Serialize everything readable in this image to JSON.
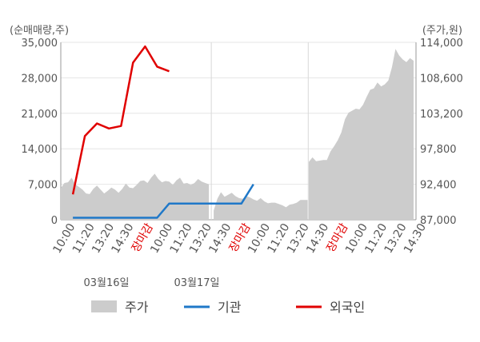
{
  "chart_data": {
    "type": "line",
    "left_axis": {
      "unit_label": "(순매매량,주)",
      "ylim": [
        0,
        35000
      ],
      "ticks": [
        "0",
        "7,000",
        "14,000",
        "21,000",
        "28,000",
        "35,000"
      ],
      "tick_values": [
        0,
        7000,
        14000,
        21000,
        28000,
        35000
      ]
    },
    "right_axis": {
      "unit_label": "(주가,원)",
      "ylim": [
        87000,
        114000
      ],
      "ticks": [
        "87,000",
        "92,400",
        "97,800",
        "103,200",
        "108,600",
        "114,000"
      ],
      "tick_values": [
        87000,
        92400,
        97800,
        103200,
        108600,
        114000
      ]
    },
    "x_labels": [
      {
        "label": "10:00",
        "close": false
      },
      {
        "label": "11:20",
        "close": false
      },
      {
        "label": "13:20",
        "close": false
      },
      {
        "label": "14:30",
        "close": false
      },
      {
        "label": "장마감",
        "close": true
      },
      {
        "label": "10:00",
        "close": false
      },
      {
        "label": "11:20",
        "close": false
      },
      {
        "label": "13:20",
        "close": false
      },
      {
        "label": "14:30",
        "close": false
      },
      {
        "label": "장마감",
        "close": true
      },
      {
        "label": "10:00",
        "close": false
      },
      {
        "label": "11:20",
        "close": false
      },
      {
        "label": "13:20",
        "close": false
      },
      {
        "label": "14:30",
        "close": false
      },
      {
        "label": "장마감",
        "close": true
      },
      {
        "label": "10:00",
        "close": false
      },
      {
        "label": "11:20",
        "close": false
      },
      {
        "label": "13:20",
        "close": false
      },
      {
        "label": "14:30",
        "close": false
      }
    ],
    "dates": [
      "03월16일",
      "03월17일"
    ],
    "series": [
      {
        "name": "주가",
        "axis": "right",
        "style": "area",
        "color": "#cccccc",
        "segments": [
          [
            [
              0,
              91800
            ],
            [
              3,
              92600
            ],
            [
              6,
              92700
            ],
            [
              9,
              93400
            ],
            [
              12,
              92400
            ],
            [
              15,
              92000
            ],
            [
              18,
              91600
            ],
            [
              21,
              91000
            ],
            [
              24,
              90900
            ],
            [
              27,
              91700
            ],
            [
              30,
              92200
            ],
            [
              33,
              91600
            ],
            [
              36,
              91000
            ],
            [
              39,
              91400
            ],
            [
              42,
              91900
            ],
            [
              45,
              91600
            ],
            [
              48,
              91100
            ],
            [
              51,
              91700
            ],
            [
              54,
              92500
            ],
            [
              57,
              91900
            ],
            [
              60,
              91800
            ],
            [
              63,
              92300
            ],
            [
              66,
              92900
            ],
            [
              69,
              93000
            ],
            [
              72,
              92600
            ],
            [
              75,
              93400
            ],
            [
              78,
              94000
            ],
            [
              81,
              93200
            ],
            [
              84,
              92700
            ],
            [
              87,
              92900
            ],
            [
              90,
              92800
            ],
            [
              93,
              92300
            ],
            [
              96,
              93000
            ],
            [
              99,
              93400
            ],
            [
              102,
              92500
            ],
            [
              105,
              92600
            ],
            [
              108,
              92300
            ],
            [
              111,
              92600
            ],
            [
              114,
              93200
            ],
            [
              117,
              92800
            ],
            [
              120,
              92600
            ],
            [
              123,
              92400
            ]
          ],
          [
            [
              127,
              88400
            ],
            [
              130,
              90200
            ],
            [
              133,
              91200
            ],
            [
              136,
              90500
            ],
            [
              139,
              90800
            ],
            [
              142,
              91100
            ],
            [
              145,
              90600
            ],
            [
              148,
              90300
            ],
            [
              151,
              90200
            ],
            [
              154,
              90600
            ],
            [
              157,
              90400
            ],
            [
              160,
              90100
            ],
            [
              163,
              89900
            ],
            [
              166,
              90300
            ],
            [
              169,
              89800
            ],
            [
              172,
              89500
            ],
            [
              175,
              89600
            ],
            [
              178,
              89600
            ],
            [
              181,
              89400
            ],
            [
              184,
              89200
            ],
            [
              187,
              88900
            ],
            [
              190,
              89300
            ],
            [
              193,
              89400
            ],
            [
              196,
              89600
            ],
            [
              199,
              90000
            ],
            [
              202,
              90000
            ],
            [
              205,
              90000
            ]
          ],
          [
            [
              206,
              95800
            ],
            [
              209,
              96500
            ],
            [
              212,
              95900
            ],
            [
              215,
              96000
            ],
            [
              218,
              96100
            ],
            [
              221,
              96100
            ],
            [
              224,
              97400
            ],
            [
              227,
              98200
            ],
            [
              230,
              99100
            ],
            [
              233,
              100300
            ],
            [
              236,
              102300
            ],
            [
              239,
              103300
            ],
            [
              242,
              103600
            ],
            [
              245,
              103900
            ],
            [
              248,
              103800
            ],
            [
              251,
              104500
            ],
            [
              254,
              105700
            ],
            [
              257,
              106800
            ],
            [
              260,
              107000
            ],
            [
              263,
              107900
            ],
            [
              266,
              107300
            ],
            [
              269,
              107600
            ],
            [
              272,
              108200
            ],
            [
              275,
              110200
            ],
            [
              278,
              113000
            ],
            [
              281,
              112000
            ],
            [
              284,
              111400
            ],
            [
              287,
              111000
            ],
            [
              290,
              111600
            ],
            [
              293,
              111200
            ]
          ]
        ]
      },
      {
        "name": "기관",
        "axis": "left",
        "style": "line",
        "color": "#1f78c8",
        "points": [
          [
            10,
            400
          ],
          [
            20,
            400
          ],
          [
            30,
            400
          ],
          [
            40,
            400
          ],
          [
            50,
            400
          ],
          [
            60,
            400
          ],
          [
            70,
            400
          ],
          [
            80,
            400
          ],
          [
            90,
            3200
          ],
          [
            100,
            3200
          ],
          [
            110,
            3200
          ],
          [
            120,
            3200
          ],
          [
            130,
            3200
          ],
          [
            140,
            3200
          ],
          [
            150,
            3200
          ],
          [
            160,
            7000
          ]
        ]
      },
      {
        "name": "외국인",
        "axis": "left",
        "style": "line",
        "color": "#e00000",
        "points": [
          [
            10,
            5000
          ],
          [
            20,
            16500
          ],
          [
            30,
            19000
          ],
          [
            40,
            18000
          ],
          [
            50,
            18500
          ],
          [
            60,
            31000
          ],
          [
            70,
            34200
          ],
          [
            80,
            30200
          ],
          [
            90,
            29300
          ]
        ]
      }
    ],
    "grid": true,
    "legend_position": "bottom-center"
  },
  "legend": [
    {
      "label": "주가",
      "kind": "area",
      "color": "#cccccc"
    },
    {
      "label": "기관",
      "kind": "line",
      "color": "#1f78c8"
    },
    {
      "label": "외국인",
      "kind": "line",
      "color": "#e00000"
    }
  ]
}
